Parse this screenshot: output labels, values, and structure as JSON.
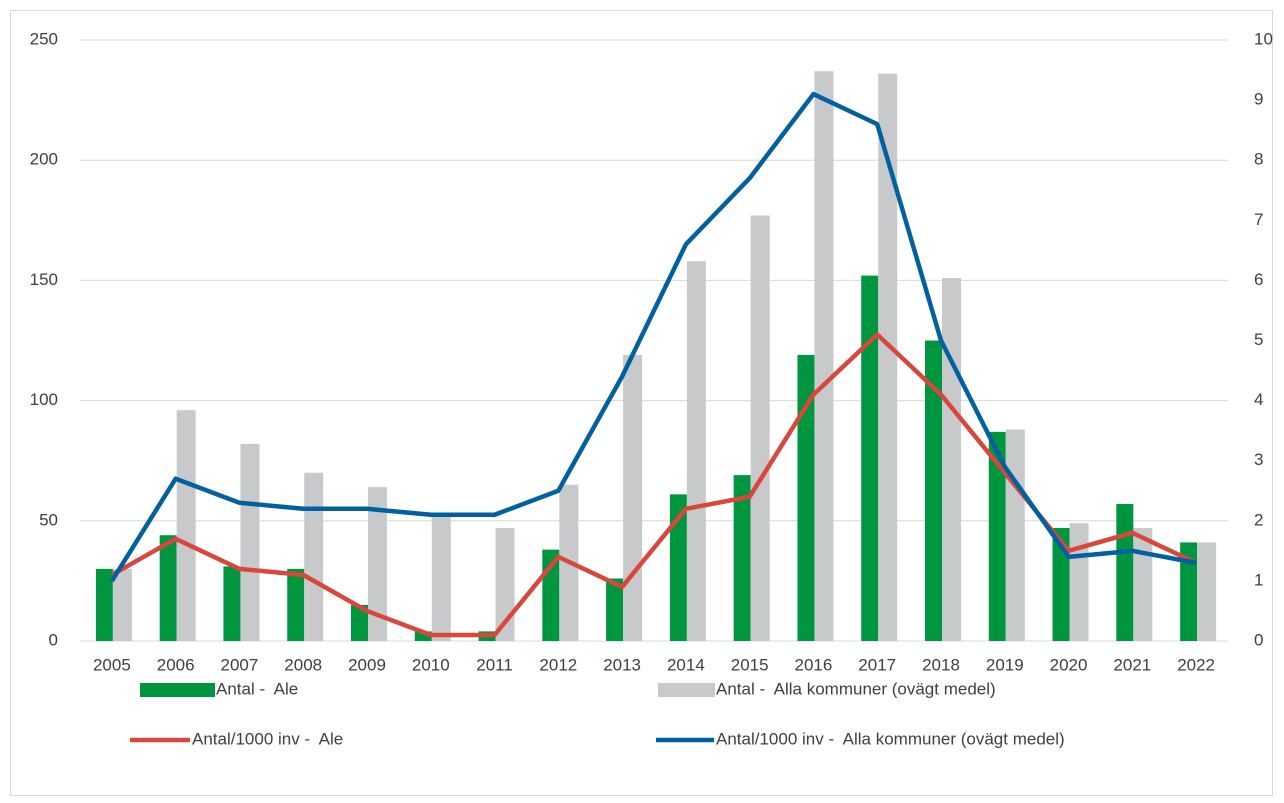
{
  "chart_data": {
    "type": "bar-line",
    "categories": [
      "2005",
      "2006",
      "2007",
      "2008",
      "2009",
      "2010",
      "2011",
      "2012",
      "2013",
      "2014",
      "2015",
      "2016",
      "2017",
      "2018",
      "2019",
      "2020",
      "2021",
      "2022"
    ],
    "series": [
      {
        "name": "Antal -  Ale",
        "type": "bar",
        "color": "#00963f",
        "values": [
          30,
          44,
          31,
          30,
          15,
          4,
          4,
          38,
          26,
          61,
          69,
          119,
          152,
          125,
          87,
          47,
          57,
          41
        ]
      },
      {
        "name": "Antal -  Alla kommuner (ovägt medel)",
        "type": "bar",
        "color": "#c8c9ca",
        "values": [
          30,
          96,
          82,
          70,
          64,
          52,
          47,
          65,
          119,
          158,
          177,
          237,
          236,
          151,
          88,
          49,
          47,
          41
        ]
      },
      {
        "name": "Antal/1000 inv -  Ale",
        "type": "line",
        "axis": "y2",
        "color": "#d9463c",
        "values": [
          1.1,
          1.7,
          1.2,
          1.1,
          0.5,
          0.1,
          0.1,
          1.4,
          0.9,
          2.2,
          2.4,
          4.1,
          5.1,
          4.1,
          2.8,
          1.5,
          1.8,
          1.3
        ]
      },
      {
        "name": "Antal/1000 inv -  Alla kommuner (ovägt medel)",
        "type": "line",
        "axis": "y2",
        "color": "#0060a0",
        "values": [
          1.0,
          2.7,
          2.3,
          2.2,
          2.2,
          2.1,
          2.1,
          2.5,
          4.4,
          6.6,
          7.7,
          9.1,
          8.6,
          5.0,
          2.9,
          1.4,
          1.5,
          1.3
        ]
      }
    ],
    "ylim": [
      0,
      250
    ],
    "yticks": [
      0,
      50,
      100,
      150,
      200,
      250
    ],
    "y2lim": [
      0,
      10
    ],
    "y2ticks": [
      0,
      1,
      2,
      3,
      4,
      5,
      6,
      7,
      8,
      9,
      10
    ],
    "grid": true,
    "legend": "bottom"
  }
}
